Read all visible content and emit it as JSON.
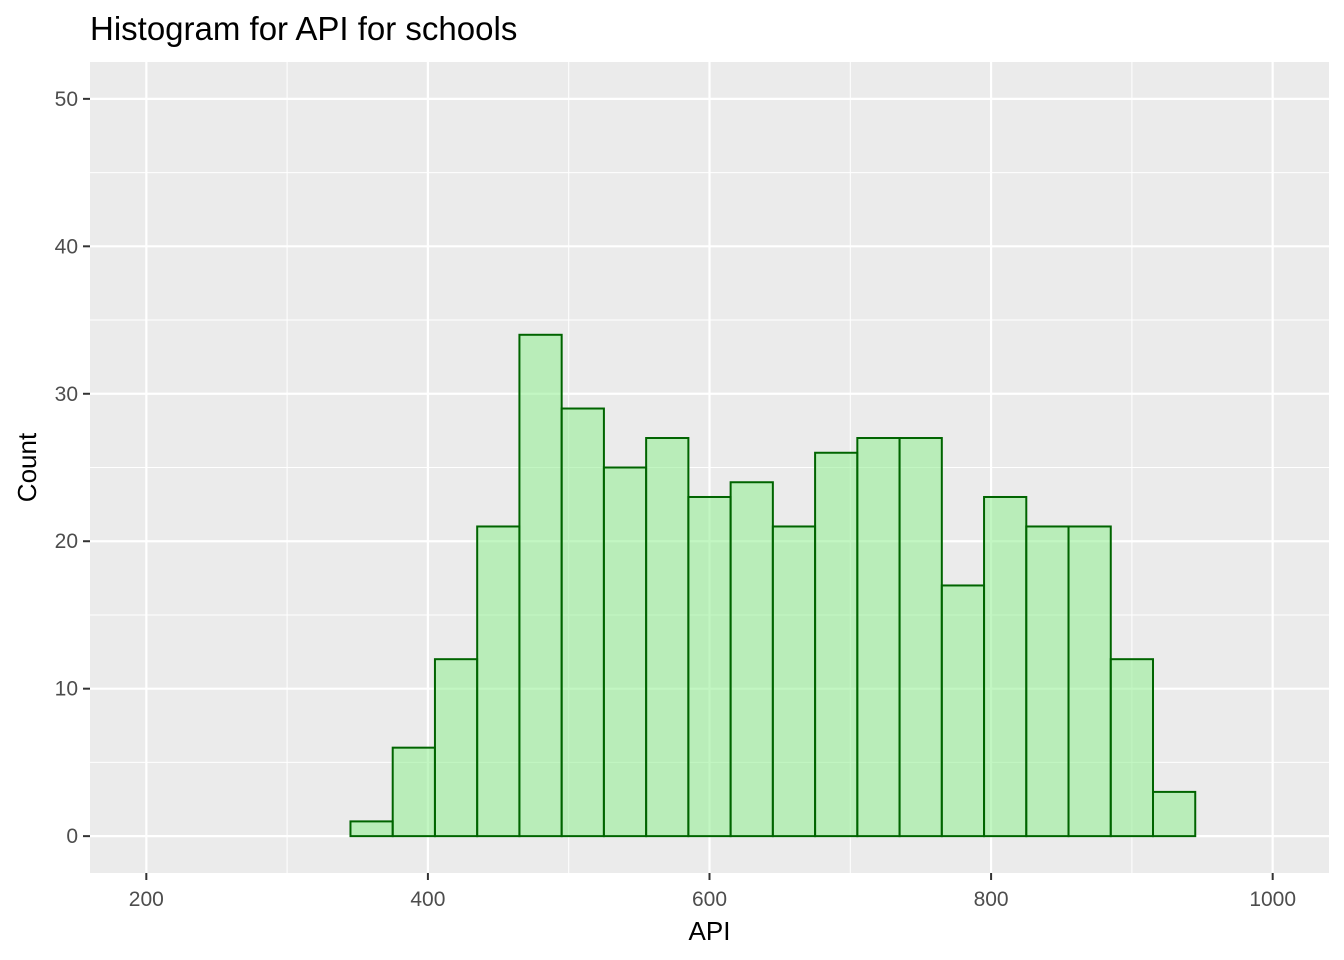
{
  "chart_data": {
    "type": "bar",
    "title": "Histogram for API for schools",
    "xlabel": "API",
    "ylabel": "Count",
    "xlim": [
      160,
      1040
    ],
    "ylim": [
      -2.5,
      52.5
    ],
    "x_ticks": [
      200,
      400,
      600,
      800,
      1000
    ],
    "y_ticks": [
      0,
      10,
      20,
      30,
      40,
      50
    ],
    "grid": true,
    "legend": "none",
    "bin_width": 30,
    "bins_start": [
      225,
      255,
      285,
      315,
      345,
      375,
      405,
      435,
      465,
      495,
      525,
      555,
      585,
      615,
      645,
      675,
      705,
      735,
      765,
      795,
      825,
      855,
      885,
      915,
      945
    ],
    "values": [
      0,
      0,
      0,
      0,
      1,
      6,
      12,
      21,
      34,
      29,
      25,
      27,
      23,
      24,
      21,
      26,
      27,
      27,
      17,
      23,
      21,
      21,
      12,
      3,
      0
    ],
    "colors": {
      "panel_bg": "#ebebeb",
      "grid_major": "#ffffff",
      "bar_fill": "#90ee90",
      "bar_outline": "#006400"
    }
  }
}
